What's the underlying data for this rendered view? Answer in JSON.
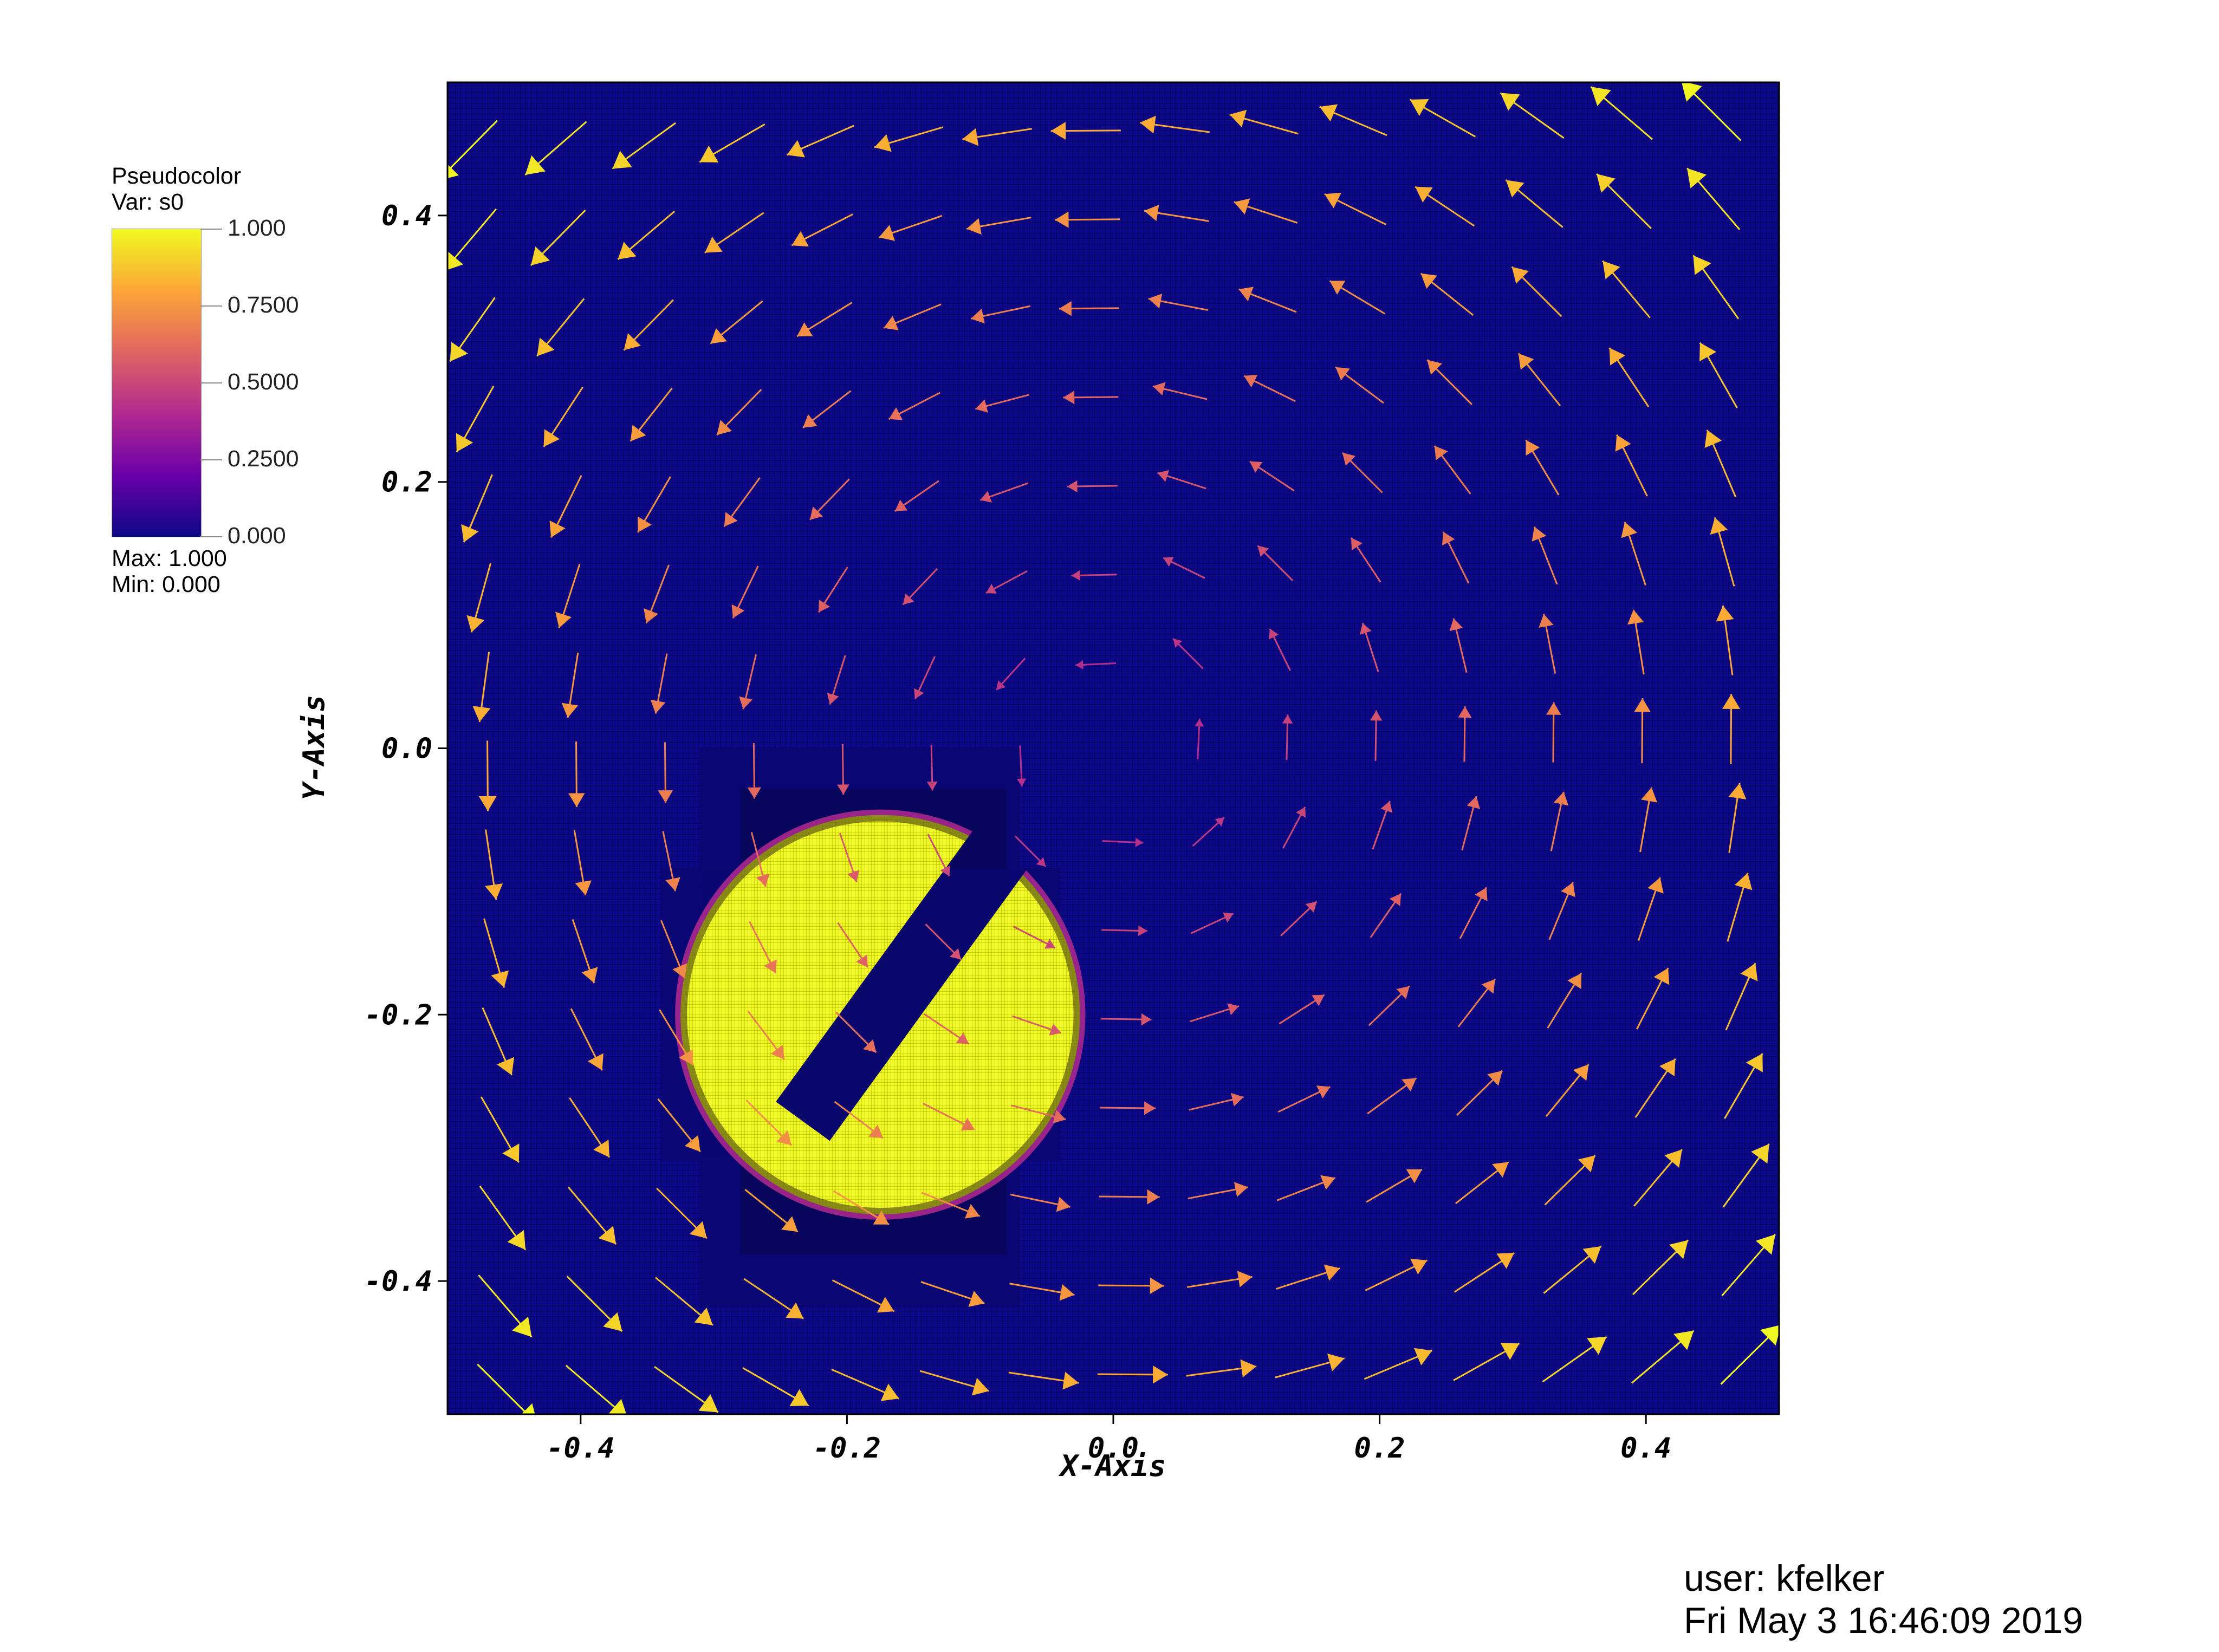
{
  "legend": {
    "title": "Pseudocolor",
    "var": "Var: s0",
    "max": "Max:  1.000",
    "min": "Min:  0.000",
    "ticks": [
      "1.000",
      "0.7500",
      "0.5000",
      "0.2500",
      "0.000"
    ],
    "colormap": [
      "#0d0887",
      "#6a00a8",
      "#b12a90",
      "#e16462",
      "#fca636",
      "#f0f921"
    ]
  },
  "footer": {
    "user": "user: kfelker",
    "date": "Fri May  3 16:46:09 2019"
  },
  "chart_data": {
    "type": "heatmap",
    "title": "",
    "xlabel": "X-Axis",
    "ylabel": "Y-Axis",
    "xlim": [
      -0.5,
      0.5
    ],
    "ylim": [
      -0.5,
      0.5
    ],
    "xticks": [
      "-0.4",
      "-0.2",
      "0.0",
      "0.2",
      "0.4"
    ],
    "xtick_values": [
      -0.4,
      -0.2,
      0.0,
      0.2,
      0.4
    ],
    "yticks": [
      "0.4",
      "0.2",
      "0.0",
      "-0.2",
      "-0.4"
    ],
    "ytick_values": [
      0.4,
      0.2,
      0.0,
      -0.2,
      -0.4
    ],
    "variable": "s0",
    "range": [
      0.0,
      1.0
    ],
    "background_value": 0.0,
    "background_color": "#0d0887",
    "grid": true,
    "slotted_disk": {
      "center": [
        -0.175,
        -0.2
      ],
      "radius": 0.15,
      "value": 1.0,
      "slot_angle_deg": 54,
      "slot_half_width": 0.025,
      "color": "#f0f921"
    },
    "vector_field": {
      "type": "rotational",
      "center": [
        0.0,
        0.0
      ],
      "grid_spacing": 0.0667,
      "color_by_magnitude": true
    }
  }
}
